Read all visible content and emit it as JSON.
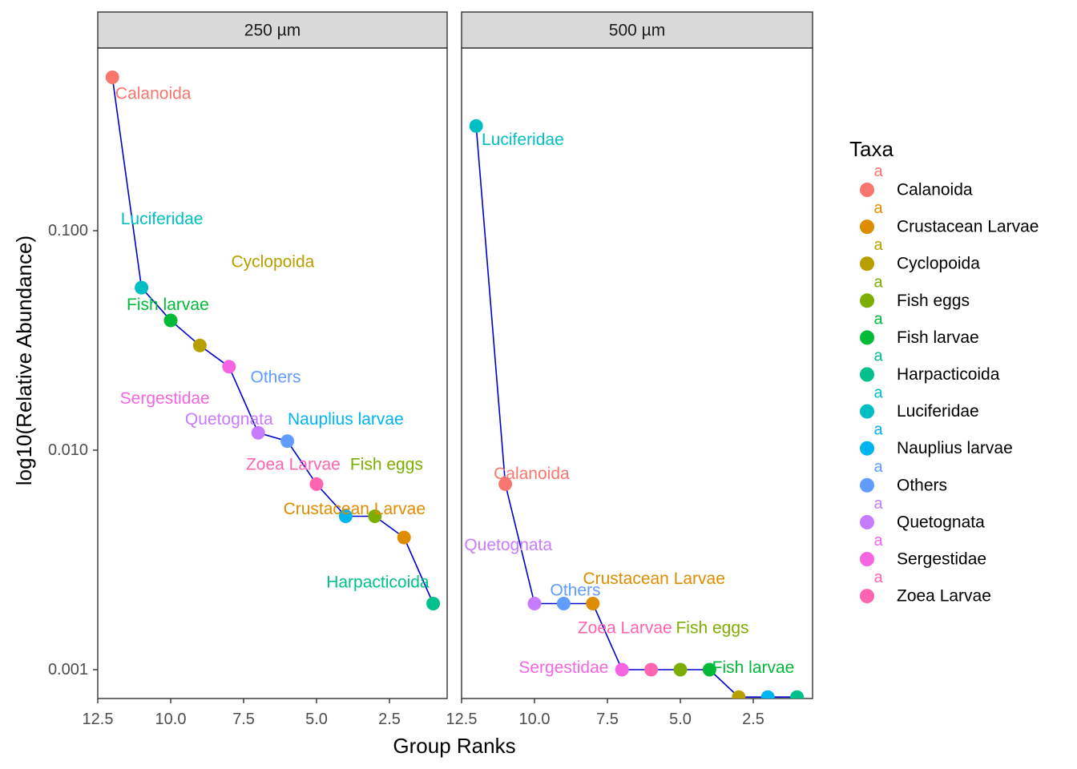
{
  "chart_data": {
    "type": "scatter",
    "xlabel": "Group Ranks",
    "ylabel": "log10(Relative Abundance)",
    "x_reversed": true,
    "y_scale": "log10",
    "xlim": [
      12.5,
      0.5
    ],
    "ylim": [
      0.00075,
      0.65
    ],
    "x_ticks": [
      12.5,
      10.0,
      7.5,
      5.0,
      2.5
    ],
    "x_tick_labels": [
      "12.5",
      "10.0",
      "7.5",
      "5.0",
      "2.5"
    ],
    "y_ticks": [
      0.1,
      0.01,
      0.001
    ],
    "y_tick_labels": [
      "0.100",
      "0.010",
      "0.001"
    ],
    "line_color": "#0000cd",
    "legend": {
      "title": "Taxa",
      "position": "right",
      "key_glyph": "a",
      "entries": [
        {
          "name": "Calanoida",
          "color": "#F8766D"
        },
        {
          "name": "Crustacean Larvae",
          "color": "#DE8C00"
        },
        {
          "name": "Cyclopoida",
          "color": "#B79F00"
        },
        {
          "name": "Fish eggs",
          "color": "#7CAE00"
        },
        {
          "name": "Fish larvae",
          "color": "#00BA38"
        },
        {
          "name": "Harpacticoida",
          "color": "#00C08B"
        },
        {
          "name": "Luciferidae",
          "color": "#00BFC4"
        },
        {
          "name": "Nauplius larvae",
          "color": "#00B4F0"
        },
        {
          "name": "Others",
          "color": "#619CFF"
        },
        {
          "name": "Quetognata",
          "color": "#C77CFF"
        },
        {
          "name": "Sergestidae",
          "color": "#F564E3"
        },
        {
          "name": "Zoea Larvae",
          "color": "#FF64B0"
        }
      ]
    },
    "panels": [
      {
        "title": "250 µm",
        "points": [
          {
            "taxon": "Calanoida",
            "rank": 12,
            "y": 0.5
          },
          {
            "taxon": "Luciferidae",
            "rank": 11,
            "y": 0.055
          },
          {
            "taxon": "Fish larvae",
            "rank": 10,
            "y": 0.039
          },
          {
            "taxon": "Cyclopoida",
            "rank": 9,
            "y": 0.03
          },
          {
            "taxon": "Sergestidae",
            "rank": 8,
            "y": 0.024
          },
          {
            "taxon": "Quetognata",
            "rank": 7,
            "y": 0.012
          },
          {
            "taxon": "Others",
            "rank": 6,
            "y": 0.011
          },
          {
            "taxon": "Zoea Larvae",
            "rank": 5,
            "y": 0.007
          },
          {
            "taxon": "Nauplius larvae",
            "rank": 4,
            "y": 0.005
          },
          {
            "taxon": "Fish eggs",
            "rank": 3,
            "y": 0.005
          },
          {
            "taxon": "Crustacean Larvae",
            "rank": 2,
            "y": 0.004
          },
          {
            "taxon": "Harpacticoida",
            "rank": 1,
            "y": 0.002
          }
        ],
        "labels": [
          {
            "text": "Calanoida",
            "taxon": "Calanoida",
            "rank": 10.6,
            "y": 0.42
          },
          {
            "text": "Luciferidae",
            "taxon": "Luciferidae",
            "rank": 10.3,
            "y": 0.113
          },
          {
            "text": "Cyclopoida",
            "taxon": "Cyclopoida",
            "rank": 6.5,
            "y": 0.072
          },
          {
            "text": "Fish larvae",
            "taxon": "Fish larvae",
            "rank": 10.1,
            "y": 0.046
          },
          {
            "text": "Others",
            "taxon": "Others",
            "rank": 6.4,
            "y": 0.0215
          },
          {
            "text": "Sergestidae",
            "taxon": "Sergestidae",
            "rank": 10.2,
            "y": 0.0172
          },
          {
            "text": "Quetognata",
            "taxon": "Quetognata",
            "rank": 8.0,
            "y": 0.0138
          },
          {
            "text": "Nauplius larvae",
            "taxon": "Nauplius larvae",
            "rank": 4.0,
            "y": 0.0138
          },
          {
            "text": "Zoea Larvae",
            "taxon": "Zoea Larvae",
            "rank": 5.8,
            "y": 0.0086
          },
          {
            "text": "Fish eggs",
            "taxon": "Fish eggs",
            "rank": 2.6,
            "y": 0.0086
          },
          {
            "text": "Crustacean Larvae",
            "taxon": "Crustacean Larvae",
            "rank": 3.7,
            "y": 0.0054
          },
          {
            "text": "Harpacticoida",
            "taxon": "Harpacticoida",
            "rank": 2.9,
            "y": 0.0025
          }
        ]
      },
      {
        "title": "500 µm",
        "points": [
          {
            "taxon": "Luciferidae",
            "rank": 12,
            "y": 0.3
          },
          {
            "taxon": "Calanoida",
            "rank": 11,
            "y": 0.007
          },
          {
            "taxon": "Quetognata",
            "rank": 10,
            "y": 0.002
          },
          {
            "taxon": "Others",
            "rank": 9,
            "y": 0.002
          },
          {
            "taxon": "Crustacean Larvae",
            "rank": 8,
            "y": 0.002
          },
          {
            "taxon": "Sergestidae",
            "rank": 7,
            "y": 0.001
          },
          {
            "taxon": "Zoea Larvae",
            "rank": 6,
            "y": 0.001
          },
          {
            "taxon": "Fish eggs",
            "rank": 5,
            "y": 0.001
          },
          {
            "taxon": "Fish larvae",
            "rank": 4,
            "y": 0.001
          },
          {
            "taxon": "Cyclopoida",
            "rank": 3,
            "y": 0.00075
          },
          {
            "taxon": "Nauplius larvae",
            "rank": 2,
            "y": 0.00075
          },
          {
            "taxon": "Harpacticoida",
            "rank": 1,
            "y": 0.00075
          }
        ],
        "labels": [
          {
            "text": "Luciferidae",
            "taxon": "Luciferidae",
            "rank": 10.4,
            "y": 0.26
          },
          {
            "text": "Calanoida",
            "taxon": "Calanoida",
            "rank": 10.1,
            "y": 0.0078
          },
          {
            "text": "Quetognata",
            "taxon": "Quetognata",
            "rank": 10.9,
            "y": 0.0037
          },
          {
            "text": "Crustacean Larvae",
            "taxon": "Crustacean Larvae",
            "rank": 5.9,
            "y": 0.0026
          },
          {
            "text": "Others",
            "taxon": "Others",
            "rank": 8.6,
            "y": 0.0023
          },
          {
            "text": "Zoea Larvae",
            "taxon": "Zoea Larvae",
            "rank": 6.9,
            "y": 0.00155
          },
          {
            "text": "Fish eggs",
            "taxon": "Fish eggs",
            "rank": 3.9,
            "y": 0.00155
          },
          {
            "text": "Sergestidae",
            "taxon": "Sergestidae",
            "rank": 9.0,
            "y": 0.00102
          },
          {
            "text": "Fish larvae",
            "taxon": "Fish larvae",
            "rank": 2.5,
            "y": 0.00102
          }
        ]
      }
    ]
  }
}
